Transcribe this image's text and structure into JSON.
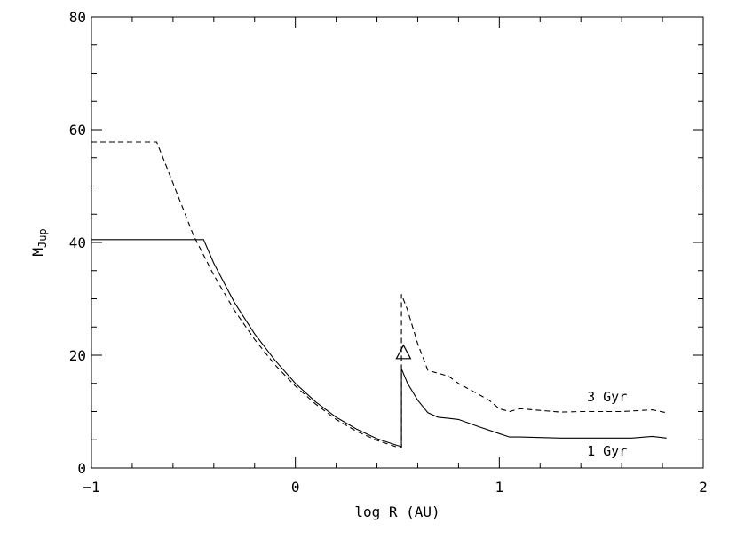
{
  "chart_data": {
    "type": "line",
    "xlabel": "log R (AU)",
    "ylabel_main": "M",
    "ylabel_sub": "Jup",
    "xlim": [
      -1,
      2
    ],
    "ylim": [
      0,
      80
    ],
    "x_ticks": [
      -1,
      0,
      1,
      2
    ],
    "x_tick_labels": [
      "−1",
      "0",
      "1",
      "2"
    ],
    "y_ticks": [
      0,
      20,
      40,
      60,
      80
    ],
    "y_tick_labels": [
      "0",
      "20",
      "40",
      "60",
      "80"
    ],
    "grid": false,
    "series": [
      {
        "name": "1 Gyr",
        "style": "solid",
        "points": [
          [
            -1,
            40.5
          ],
          [
            -0.45,
            40.5
          ],
          [
            -0.4,
            36.3
          ],
          [
            -0.3,
            29.4
          ],
          [
            -0.2,
            23.8
          ],
          [
            -0.1,
            19.1
          ],
          [
            0.0,
            15.0
          ],
          [
            0.1,
            11.7
          ],
          [
            0.2,
            9.0
          ],
          [
            0.3,
            6.9
          ],
          [
            0.4,
            5.2
          ],
          [
            0.5,
            4.0
          ],
          [
            0.52,
            3.8
          ],
          [
            0.52,
            17.6
          ],
          [
            0.55,
            15.0
          ],
          [
            0.6,
            12.0
          ],
          [
            0.65,
            9.8
          ],
          [
            0.7,
            9.0
          ],
          [
            0.75,
            8.8
          ],
          [
            0.8,
            8.6
          ],
          [
            0.9,
            7.3
          ],
          [
            1.0,
            6.1
          ],
          [
            1.05,
            5.5
          ],
          [
            1.1,
            5.5
          ],
          [
            1.3,
            5.3
          ],
          [
            1.5,
            5.3
          ],
          [
            1.65,
            5.3
          ],
          [
            1.75,
            5.6
          ],
          [
            1.82,
            5.3
          ]
        ]
      },
      {
        "name": "3 Gyr",
        "style": "dashed",
        "points": [
          [
            -1,
            57.8
          ],
          [
            -0.68,
            57.8
          ],
          [
            -0.6,
            50.5
          ],
          [
            -0.5,
            41.3
          ],
          [
            -0.4,
            34.2
          ],
          [
            -0.3,
            28.0
          ],
          [
            -0.2,
            22.8
          ],
          [
            -0.1,
            18.3
          ],
          [
            0.0,
            14.5
          ],
          [
            0.1,
            11.3
          ],
          [
            0.2,
            8.6
          ],
          [
            0.3,
            6.5
          ],
          [
            0.4,
            4.9
          ],
          [
            0.5,
            3.7
          ],
          [
            0.52,
            3.6
          ],
          [
            0.52,
            30.8
          ],
          [
            0.55,
            28.0
          ],
          [
            0.6,
            22.0
          ],
          [
            0.65,
            17.3
          ],
          [
            0.7,
            16.8
          ],
          [
            0.75,
            16.3
          ],
          [
            0.8,
            15.0
          ],
          [
            0.85,
            14.0
          ],
          [
            0.9,
            13.0
          ],
          [
            0.95,
            12.0
          ],
          [
            1.0,
            10.5
          ],
          [
            1.05,
            10.0
          ],
          [
            1.1,
            10.5
          ],
          [
            1.2,
            10.2
          ],
          [
            1.3,
            9.9
          ],
          [
            1.4,
            10.0
          ],
          [
            1.5,
            10.0
          ],
          [
            1.6,
            10.0
          ],
          [
            1.7,
            10.2
          ],
          [
            1.75,
            10.3
          ],
          [
            1.82,
            9.8
          ]
        ]
      }
    ],
    "marker": {
      "shape": "triangle",
      "x": 0.53,
      "y": 20.5
    },
    "annotations": [
      {
        "text": "3 Gyr",
        "x": 1.43,
        "y": 11.8
      },
      {
        "text": "1 Gyr",
        "x": 1.43,
        "y": 2.2
      }
    ]
  }
}
